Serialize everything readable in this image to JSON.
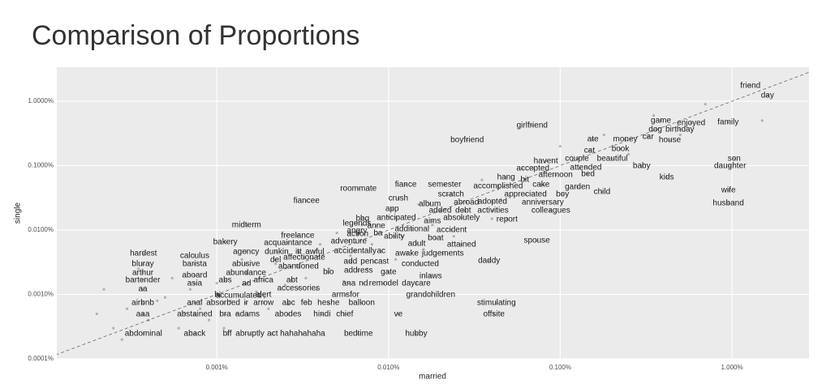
{
  "chart_data": {
    "type": "scatter",
    "title": "Comparison of Proportions",
    "x_label": "married",
    "y_label": "single",
    "xscale": "log",
    "yscale": "log",
    "grid": true,
    "xlim": [
      0.000117,
      2.81
    ],
    "ylim": [
      0.0001,
      3.37
    ],
    "xticks": [
      {
        "value": 0.001,
        "label": "0.001%"
      },
      {
        "value": 0.01,
        "label": "0.010%"
      },
      {
        "value": 0.1,
        "label": "0.100%"
      },
      {
        "value": 1,
        "label": "1.000%"
      }
    ],
    "yticks": [
      {
        "value": 0.0001,
        "label": "0.0001%"
      },
      {
        "value": 0.001,
        "label": "0.0010%"
      },
      {
        "value": 0.01,
        "label": "0.0100%"
      },
      {
        "value": 0.1,
        "label": "0.1000%"
      },
      {
        "value": 1,
        "label": "1.0000%"
      }
    ],
    "color": "#000000",
    "labels": [
      "friend",
      "day",
      "girlfriend",
      "game",
      "enjoyed",
      "family",
      "dog",
      "birthday",
      "car",
      "house",
      "boyfriend",
      "ate",
      "money",
      "cat",
      "book",
      "couple",
      "beautiful",
      "havent",
      "son",
      "daughter",
      "accepted",
      "attended",
      "baby",
      "afternoon",
      "bed",
      "kids",
      "hang",
      "bit",
      "cake",
      "garden",
      "child",
      "accomplished",
      "roommate",
      "fiance",
      "semester",
      "scratch",
      "appreciated",
      "boy",
      "crush",
      "album",
      "abroad",
      "adopted",
      "anniversary",
      "wife",
      "husband",
      "fiancee",
      "app",
      "added",
      "debt",
      "activities",
      "colleagues",
      "bbq",
      "anticipated",
      "aims",
      "absolutely",
      "report",
      "midterm",
      "legends",
      "anne",
      "angry",
      "additional",
      "accident",
      "action",
      "ba",
      "ability",
      "freelance",
      "boat",
      "adult",
      "spouse",
      "bakery",
      "acquaintance",
      "adventure",
      "attained",
      "hardest",
      "calculus",
      "agency",
      "dunkin",
      "itt",
      "awful",
      "accidentally",
      "ac",
      "awake",
      "judgements",
      "affectionate",
      "del",
      "bluray",
      "barista",
      "abusive",
      "abandoned",
      "add",
      "pencast",
      "conducted",
      "daddy",
      "arthur",
      "abundance",
      "bio",
      "address",
      "gate",
      "inlaws",
      "bartender",
      "aboard",
      "abs",
      "ad",
      "africa",
      "abt",
      "asia",
      "ana",
      "nd",
      "remodel",
      "daycare",
      "aa",
      "accessories",
      "hi",
      "accumulated",
      "alert",
      "armsfor",
      "grandchildren",
      "airbnb",
      "anal",
      "absorbed",
      "ir",
      "arrow",
      "abc",
      "feb",
      "heshe",
      "balloon",
      "stimulating",
      "aaa",
      "abstained",
      "bra",
      "adams",
      "abodes",
      "hindi",
      "chief",
      "ve",
      "offsite",
      "abdominal",
      "aback",
      "bff",
      "abruptly",
      "act",
      "hahahahaha",
      "bedtime",
      "hubby",
      null,
      null,
      null,
      null,
      null,
      null,
      null,
      null,
      null,
      null,
      null,
      null,
      null,
      null,
      null,
      null,
      null,
      null,
      null,
      null,
      null,
      null,
      null,
      null,
      null,
      null,
      null,
      null,
      null,
      null,
      null,
      null,
      null,
      null,
      null,
      null,
      null,
      null,
      null,
      null,
      null,
      null,
      null,
      null,
      null,
      null,
      null,
      null,
      null,
      null,
      null,
      null,
      null,
      null,
      null,
      null,
      null,
      null,
      null,
      null
    ],
    "x": [
      1.28,
      1.61,
      0.0686,
      0.386,
      0.578,
      0.95,
      0.358,
      0.497,
      0.325,
      0.435,
      0.0287,
      0.155,
      0.239,
      0.148,
      0.224,
      0.125,
      0.201,
      0.0824,
      1.03,
      0.975,
      0.0693,
      0.141,
      0.298,
      0.094,
      0.145,
      0.417,
      0.0484,
      0.0622,
      0.0773,
      0.126,
      0.175,
      0.0435,
      0.00668,
      0.0126,
      0.0212,
      0.0231,
      0.0628,
      0.103,
      0.0114,
      0.0174,
      0.0284,
      0.0403,
      0.0791,
      0.953,
      0.953,
      0.00333,
      0.0105,
      0.02,
      0.0272,
      0.0406,
      0.0881,
      0.00706,
      0.0111,
      0.018,
      0.0266,
      0.049,
      0.00149,
      0.00655,
      0.00849,
      0.00655,
      0.0137,
      0.0233,
      0.00661,
      0.00869,
      0.0108,
      0.00296,
      0.0188,
      0.0146,
      0.0731,
      0.00112,
      0.0026,
      0.00587,
      0.0266,
      0.000374,
      0.000743,
      0.00148,
      0.00223,
      0.00299,
      0.00372,
      0.0064,
      0.00906,
      0.0128,
      0.0207,
      0.00323,
      0.0022,
      0.000371,
      0.000743,
      0.00148,
      0.00299,
      0.006,
      0.00831,
      0.0153,
      0.0385,
      0.000371,
      0.00148,
      0.00447,
      0.00668,
      0.01,
      0.0176,
      0.000371,
      0.000743,
      0.00112,
      0.00149,
      0.00187,
      0.00274,
      0.000743,
      0.00587,
      0.00714,
      0.00937,
      0.0145,
      0.000371,
      0.00299,
      0.00101,
      0.00134,
      0.00187,
      0.00562,
      0.0176,
      0.000371,
      0.000743,
      0.00109,
      0.00148,
      0.00187,
      0.00262,
      0.00333,
      0.00447,
      0.00698,
      0.0425,
      0.000371,
      0.000743,
      0.00112,
      0.00151,
      0.0026,
      0.0041,
      0.00556,
      0.0114,
      0.0411,
      0.000374,
      0.000743,
      0.00115,
      0.00156,
      0.00211,
      0.00316,
      0.00668,
      0.0145,
      0.00025,
      0.0003,
      0.0004,
      0.0005,
      0.0006,
      0.0007,
      0.0008,
      0.0009,
      0.001,
      0.0012,
      0.0013,
      0.0015,
      0.0017,
      0.002,
      0.0022,
      0.0025,
      0.003,
      0.0033,
      0.004,
      0.0045,
      0.005,
      0.006,
      0.007,
      0.008,
      0.01,
      0.012,
      0.015,
      0.018,
      0.022,
      0.028,
      0.035,
      0.045,
      0.06,
      0.08,
      0.1,
      0.13,
      0.18,
      0.25,
      0.35,
      0.5,
      0.7,
      1.5,
      0.0002,
      0.00022,
      0.00028,
      0.00035,
      0.00045,
      0.00055,
      0.00065,
      0.0011,
      0.0014,
      0.0019,
      0.0026,
      0.0038,
      0.0055,
      0.0075,
      0.011,
      0.016,
      0.024,
      0.04
    ],
    "values": [
      1.73,
      1.22,
      0.42,
      0.5,
      0.457,
      0.471,
      0.363,
      0.363,
      0.28,
      0.249,
      0.249,
      0.256,
      0.256,
      0.171,
      0.181,
      0.128,
      0.128,
      0.117,
      0.128,
      0.0987,
      0.0904,
      0.0931,
      0.0987,
      0.0716,
      0.0738,
      0.0658,
      0.0658,
      0.0603,
      0.0506,
      0.0465,
      0.039,
      0.0478,
      0.0438,
      0.0506,
      0.0506,
      0.0357,
      0.0357,
      0.0357,
      0.031,
      0.0253,
      0.0268,
      0.0275,
      0.0268,
      0.0413,
      0.026,
      0.0284,
      0.0212,
      0.02,
      0.02,
      0.02,
      0.02,
      0.015,
      0.0155,
      0.0137,
      0.0155,
      0.0146,
      0.0119,
      0.0126,
      0.0116,
      0.0097,
      0.0103,
      0.01,
      0.00865,
      0.00891,
      0.00793,
      0.00817,
      0.00748,
      0.00611,
      0.00686,
      0.00648,
      0.0063,
      0.00667,
      0.00594,
      0.00432,
      0.00396,
      0.00457,
      0.00457,
      0.00457,
      0.00457,
      0.00471,
      0.00471,
      0.00432,
      0.00432,
      0.00373,
      0.00343,
      0.00296,
      0.00296,
      0.00296,
      0.00272,
      0.00323,
      0.00323,
      0.00296,
      0.00333,
      0.00215,
      0.00215,
      0.00222,
      0.00235,
      0.00222,
      0.00192,
      0.00166,
      0.00198,
      0.00166,
      0.00148,
      0.00166,
      0.00166,
      0.00148,
      0.00148,
      0.00148,
      0.00148,
      0.00148,
      0.00121,
      0.00124,
      0.000986,
      0.000957,
      0.000986,
      0.000986,
      0.000986,
      0.000738,
      0.000738,
      0.000738,
      0.000738,
      0.000738,
      0.000738,
      0.000738,
      0.000738,
      0.000738,
      0.000738,
      0.000492,
      0.000492,
      0.000492,
      0.000492,
      0.000492,
      0.000492,
      0.000492,
      0.000492,
      0.000492,
      0.000245,
      0.000245,
      0.000245,
      0.000245,
      0.000245,
      0.000245,
      0.000245,
      0.000245,
      0.0003,
      0.0006,
      0.0004,
      0.0009,
      0.0003,
      0.0012,
      0.0006,
      0.0004,
      0.0015,
      0.0008,
      0.0005,
      0.0022,
      0.0011,
      0.0006,
      0.003,
      0.0014,
      0.0045,
      0.0018,
      0.006,
      0.0025,
      0.009,
      0.004,
      0.012,
      0.006,
      0.016,
      0.008,
      0.025,
      0.012,
      0.035,
      0.02,
      0.06,
      0.03,
      0.09,
      0.05,
      0.2,
      0.09,
      0.3,
      0.15,
      0.6,
      0.3,
      0.9,
      0.5,
      0.0005,
      0.0012,
      0.0002,
      0.0025,
      0.0008,
      0.0018,
      0.0005,
      0.0003,
      0.0035,
      0.0009,
      0.0007,
      0.0012,
      0.0016,
      0.0025,
      0.0035,
      0.005,
      0.008,
      0.015
    ]
  }
}
